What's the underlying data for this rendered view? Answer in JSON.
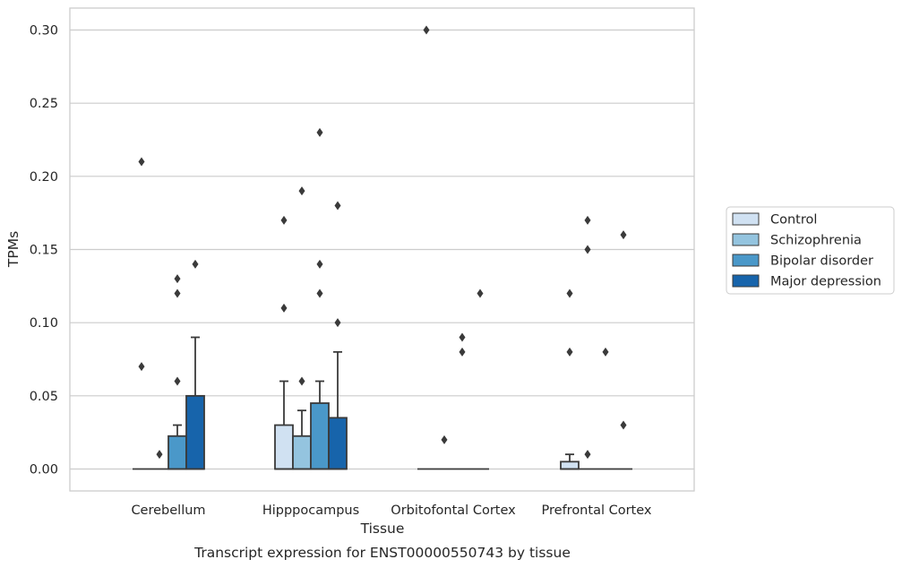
{
  "chart_data": {
    "type": "box",
    "xlabel": "Tissue",
    "ylabel": "TPMs",
    "caption": "Transcript expression for ENST00000550743 by tissue",
    "ylim": [
      -0.015,
      0.315
    ],
    "yticks": [
      0.0,
      0.05,
      0.1,
      0.15,
      0.2,
      0.25,
      0.3
    ],
    "ytick_labels": [
      "0.00",
      "0.05",
      "0.10",
      "0.15",
      "0.20",
      "0.25",
      "0.30"
    ],
    "grid": "horizontal",
    "legend_position": "right",
    "categories": [
      "Cerebellum",
      "Hipppocampus",
      "Orbitofontal Cortex",
      "Prefrontal Cortex"
    ],
    "series": [
      {
        "name": "Control",
        "color": "#d0e1f2",
        "boxes": [
          {
            "q1": 0.0,
            "median": 0.0,
            "q3": 0.0,
            "whisker_low": 0.0,
            "whisker_high": 0.0,
            "outliers": [
              0.07,
              0.21
            ]
          },
          {
            "q1": 0.0,
            "median": 0.0,
            "q3": 0.03,
            "whisker_low": 0.0,
            "whisker_high": 0.06,
            "outliers": [
              0.11,
              0.17
            ]
          },
          {
            "q1": 0.0,
            "median": 0.0,
            "q3": 0.0,
            "whisker_low": 0.0,
            "whisker_high": 0.0,
            "outliers": [
              0.3
            ]
          },
          {
            "q1": 0.0,
            "median": 0.0,
            "q3": 0.005,
            "whisker_low": 0.0,
            "whisker_high": 0.01,
            "outliers": [
              0.08,
              0.12
            ]
          }
        ]
      },
      {
        "name": "Schizophrenia",
        "color": "#94c4df",
        "boxes": [
          {
            "q1": 0.0,
            "median": 0.0,
            "q3": 0.0,
            "whisker_low": 0.0,
            "whisker_high": 0.0,
            "outliers": [
              0.01
            ]
          },
          {
            "q1": 0.0,
            "median": 0.0,
            "q3": 0.0225,
            "whisker_low": 0.0,
            "whisker_high": 0.04,
            "outliers": [
              0.06,
              0.19
            ]
          },
          {
            "q1": 0.0,
            "median": 0.0,
            "q3": 0.0,
            "whisker_low": 0.0,
            "whisker_high": 0.0,
            "outliers": [
              0.02
            ]
          },
          {
            "q1": 0.0,
            "median": 0.0,
            "q3": 0.0,
            "whisker_low": 0.0,
            "whisker_high": 0.0,
            "outliers": [
              0.01,
              0.15,
              0.17
            ]
          }
        ]
      },
      {
        "name": "Bipolar disorder",
        "color": "#4a98c9",
        "boxes": [
          {
            "q1": 0.0,
            "median": 0.0,
            "q3": 0.0225,
            "whisker_low": 0.0,
            "whisker_high": 0.03,
            "outliers": [
              0.06,
              0.12,
              0.13
            ]
          },
          {
            "q1": 0.0,
            "median": 0.0,
            "q3": 0.045,
            "whisker_low": 0.0,
            "whisker_high": 0.06,
            "outliers": [
              0.12,
              0.14,
              0.23
            ]
          },
          {
            "q1": 0.0,
            "median": 0.0,
            "q3": 0.0,
            "whisker_low": 0.0,
            "whisker_high": 0.0,
            "outliers": [
              0.08,
              0.09
            ]
          },
          {
            "q1": 0.0,
            "median": 0.0,
            "q3": 0.0,
            "whisker_low": 0.0,
            "whisker_high": 0.0,
            "outliers": [
              0.08
            ]
          }
        ]
      },
      {
        "name": "Major depression",
        "color": "#1764ab",
        "boxes": [
          {
            "q1": 0.0,
            "median": 0.0,
            "q3": 0.05,
            "whisker_low": 0.0,
            "whisker_high": 0.09,
            "outliers": [
              0.14
            ]
          },
          {
            "q1": 0.0,
            "median": 0.0,
            "q3": 0.035,
            "whisker_low": 0.0,
            "whisker_high": 0.08,
            "outliers": [
              0.1,
              0.18
            ]
          },
          {
            "q1": 0.0,
            "median": 0.0,
            "q3": 0.0,
            "whisker_low": 0.0,
            "whisker_high": 0.0,
            "outliers": [
              0.12
            ]
          },
          {
            "q1": 0.0,
            "median": 0.0,
            "q3": 0.0,
            "whisker_low": 0.0,
            "whisker_high": 0.0,
            "outliers": [
              0.03,
              0.16
            ]
          }
        ]
      }
    ]
  }
}
